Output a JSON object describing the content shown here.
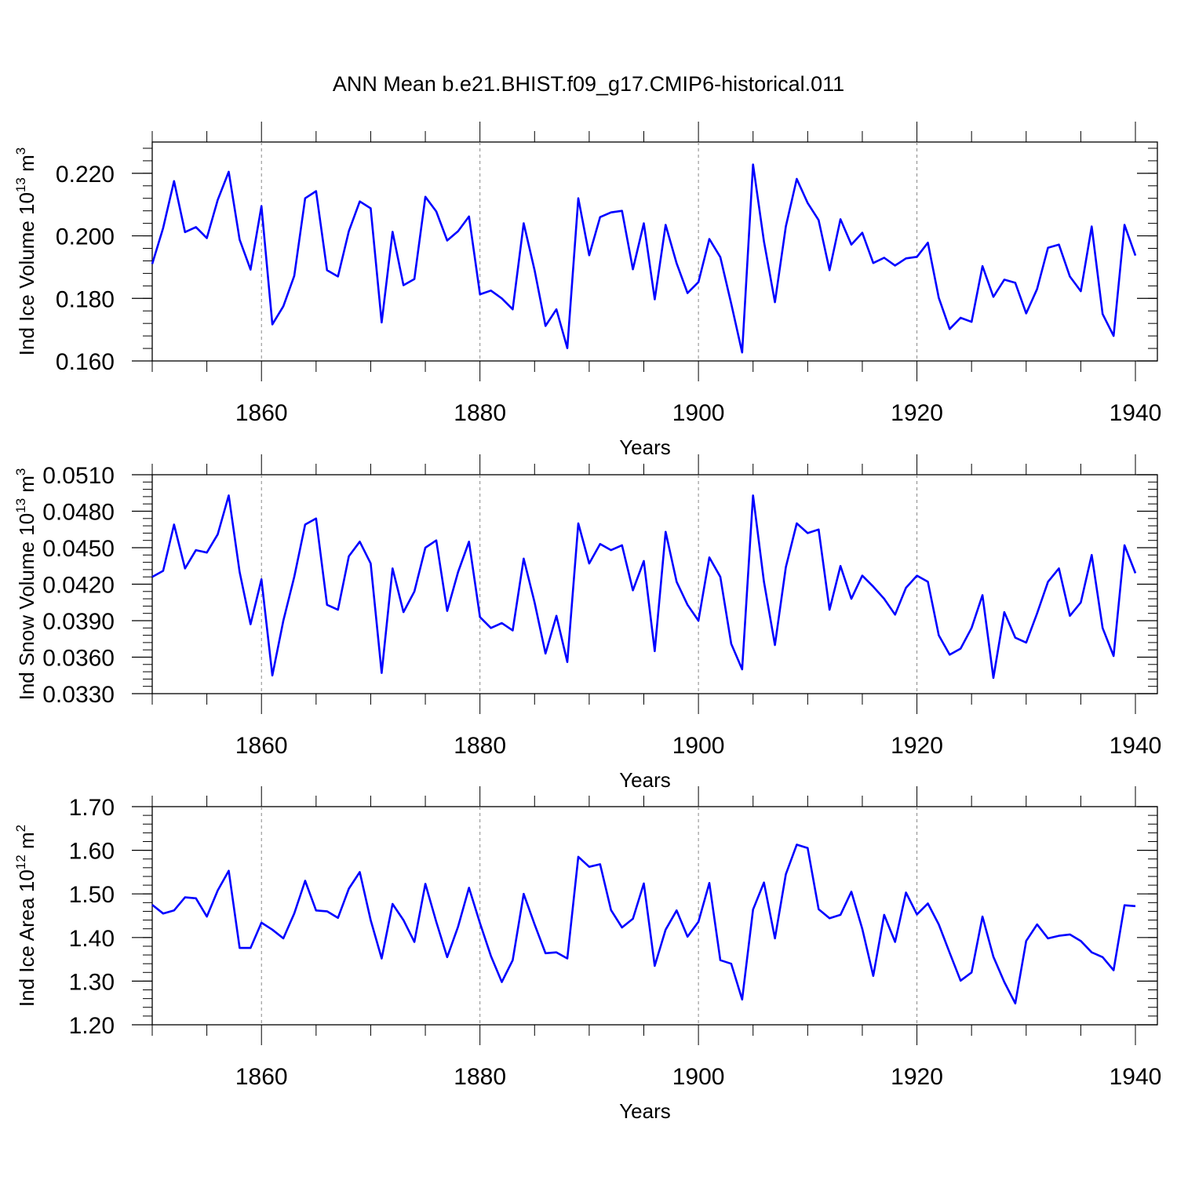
{
  "title": "ANN Mean b.e21.BHIST.f09_g17.CMIP6-historical.011",
  "colors": {
    "line": "#0000ff",
    "axis": "#000000",
    "grid": "#888888"
  },
  "chart_data": [
    {
      "type": "line",
      "ylabel_prefix": "Ind Ice Volume 10",
      "ylabel_exp": "13",
      "ylabel_unit": " m",
      "ylabel_unit_exp": "3",
      "xlabel": "Years",
      "xlim": [
        1850,
        1940
      ],
      "ylim": [
        0.16,
        0.23
      ],
      "yticks": [
        "0.220",
        "0.200",
        "0.180",
        "0.160"
      ],
      "ytick_values": [
        0.22,
        0.2,
        0.18,
        0.16
      ],
      "xticks": [
        "1860",
        "1880",
        "1900",
        "1920",
        "1940"
      ],
      "xtick_values": [
        1860,
        1880,
        1900,
        1920,
        1940
      ],
      "x_start": 1850,
      "values": [
        0.191,
        0.2025,
        0.2175,
        0.2012,
        0.2028,
        0.1993,
        0.2115,
        0.2205,
        0.1988,
        0.1892,
        0.2095,
        0.1717,
        0.1775,
        0.1872,
        0.212,
        0.2143,
        0.189,
        0.187,
        0.2015,
        0.211,
        0.2088,
        0.1723,
        0.2013,
        0.1842,
        0.1862,
        0.2125,
        0.2078,
        0.1985,
        0.2015,
        0.2062,
        0.1813,
        0.1825,
        0.18,
        0.1765,
        0.204,
        0.189,
        0.1712,
        0.1765,
        0.1641,
        0.212,
        0.1938,
        0.206,
        0.2075,
        0.208,
        0.1893,
        0.204,
        0.1797,
        0.2035,
        0.1912,
        0.1817,
        0.1852,
        0.199,
        0.1932,
        0.1783,
        0.1627,
        0.2228,
        0.1982,
        0.1788,
        0.203,
        0.2182,
        0.2105,
        0.205,
        0.189,
        0.2053,
        0.1972,
        0.201,
        0.1913,
        0.193,
        0.1905,
        0.1928,
        0.1933,
        0.1978,
        0.1802,
        0.1702,
        0.1738,
        0.1725,
        0.1903,
        0.1805,
        0.186,
        0.185,
        0.1752,
        0.183,
        0.1962,
        0.1972,
        0.187,
        0.1823,
        0.203,
        0.175,
        0.168,
        0.2035,
        0.1937
      ]
    },
    {
      "type": "line",
      "ylabel_prefix": "Ind Snow Volume 10",
      "ylabel_exp": "13",
      "ylabel_unit": " m",
      "ylabel_unit_exp": "3",
      "xlabel": "Years",
      "xlim": [
        1850,
        1940
      ],
      "ylim": [
        0.033,
        0.051
      ],
      "yticks": [
        "0.0510",
        "0.0480",
        "0.0450",
        "0.0420",
        "0.0390",
        "0.0360",
        "0.0330"
      ],
      "ytick_values": [
        0.051,
        0.048,
        0.045,
        0.042,
        0.039,
        0.036,
        0.033
      ],
      "xticks": [
        "1860",
        "1880",
        "1900",
        "1920",
        "1940"
      ],
      "xtick_values": [
        1860,
        1880,
        1900,
        1920,
        1940
      ],
      "x_start": 1850,
      "values": [
        0.0426,
        0.0431,
        0.0469,
        0.0433,
        0.0448,
        0.0446,
        0.0461,
        0.0493,
        0.043,
        0.0387,
        0.0424,
        0.0345,
        0.039,
        0.0426,
        0.0469,
        0.0474,
        0.0403,
        0.0399,
        0.0443,
        0.0455,
        0.0437,
        0.0347,
        0.0433,
        0.0397,
        0.0414,
        0.045,
        0.0456,
        0.0398,
        0.043,
        0.0455,
        0.0393,
        0.0384,
        0.0388,
        0.0382,
        0.0441,
        0.0405,
        0.0363,
        0.0394,
        0.0356,
        0.047,
        0.0437,
        0.0453,
        0.0448,
        0.0452,
        0.0415,
        0.0439,
        0.0365,
        0.0463,
        0.0422,
        0.0403,
        0.039,
        0.0442,
        0.0426,
        0.0371,
        0.035,
        0.0493,
        0.0422,
        0.037,
        0.0434,
        0.047,
        0.0462,
        0.0465,
        0.0399,
        0.0435,
        0.0408,
        0.0427,
        0.0418,
        0.0408,
        0.0395,
        0.0417,
        0.0427,
        0.0422,
        0.0378,
        0.0362,
        0.0367,
        0.0384,
        0.0411,
        0.0343,
        0.0397,
        0.0376,
        0.0372,
        0.0396,
        0.0422,
        0.0433,
        0.0394,
        0.0405,
        0.0444,
        0.0384,
        0.0361,
        0.0452,
        0.0429
      ]
    },
    {
      "type": "line",
      "ylabel_prefix": "Ind Ice Area 10",
      "ylabel_exp": "12",
      "ylabel_unit": " m",
      "ylabel_unit_exp": "2",
      "xlabel": "Years",
      "xlim": [
        1850,
        1940
      ],
      "ylim": [
        1.2,
        1.7
      ],
      "yticks": [
        "1.70",
        "1.60",
        "1.50",
        "1.40",
        "1.30",
        "1.20"
      ],
      "ytick_values": [
        1.7,
        1.6,
        1.5,
        1.4,
        1.3,
        1.2
      ],
      "xticks": [
        "1860",
        "1880",
        "1900",
        "1920",
        "1940"
      ],
      "xtick_values": [
        1860,
        1880,
        1900,
        1920,
        1940
      ],
      "x_start": 1850,
      "values": [
        1.475,
        1.455,
        1.462,
        1.492,
        1.49,
        1.448,
        1.508,
        1.553,
        1.376,
        1.376,
        1.434,
        1.418,
        1.398,
        1.455,
        1.53,
        1.462,
        1.46,
        1.445,
        1.512,
        1.55,
        1.44,
        1.352,
        1.477,
        1.44,
        1.39,
        1.523,
        1.436,
        1.355,
        1.425,
        1.514,
        1.433,
        1.358,
        1.298,
        1.348,
        1.5,
        1.43,
        1.364,
        1.366,
        1.352,
        1.585,
        1.562,
        1.568,
        1.463,
        1.423,
        1.443,
        1.524,
        1.335,
        1.418,
        1.462,
        1.402,
        1.436,
        1.525,
        1.348,
        1.34,
        1.258,
        1.464,
        1.526,
        1.398,
        1.545,
        1.613,
        1.605,
        1.465,
        1.444,
        1.452,
        1.505,
        1.42,
        1.312,
        1.452,
        1.39,
        1.503,
        1.453,
        1.478,
        1.43,
        1.365,
        1.301,
        1.32,
        1.448,
        1.356,
        1.298,
        1.249,
        1.392,
        1.43,
        1.398,
        1.404,
        1.407,
        1.392,
        1.366,
        1.355,
        1.325,
        1.474,
        1.472
      ]
    }
  ]
}
